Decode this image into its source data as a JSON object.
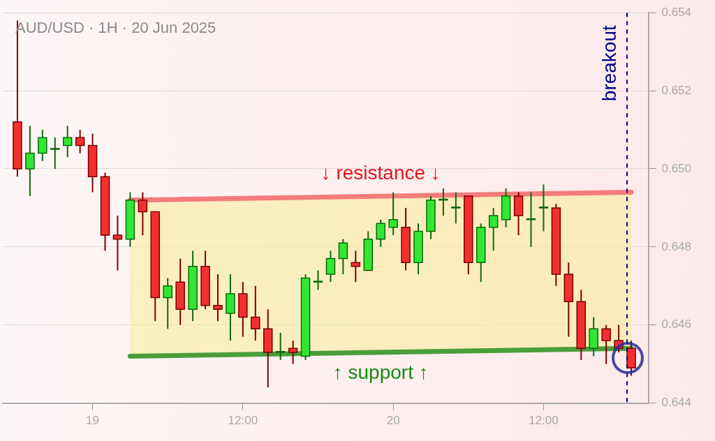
{
  "chart_data": {
    "type": "candlestick",
    "title": "AUD/USD · 1H · 20 Jun 2025",
    "x": [
      "2025-06-18T18:00",
      "2025-06-18T19:00",
      "2025-06-18T20:00",
      "2025-06-18T21:00",
      "2025-06-18T22:00",
      "2025-06-18T23:00",
      "2025-06-19T00:00",
      "2025-06-19T01:00",
      "2025-06-19T02:00",
      "2025-06-19T03:00",
      "2025-06-19T04:00",
      "2025-06-19T05:00",
      "2025-06-19T06:00",
      "2025-06-19T07:00",
      "2025-06-19T08:00",
      "2025-06-19T09:00",
      "2025-06-19T10:00",
      "2025-06-19T11:00",
      "2025-06-19T12:00",
      "2025-06-19T13:00",
      "2025-06-19T14:00",
      "2025-06-19T15:00",
      "2025-06-19T16:00",
      "2025-06-19T17:00",
      "2025-06-19T18:00",
      "2025-06-19T19:00",
      "2025-06-19T20:00",
      "2025-06-19T21:00",
      "2025-06-19T22:00",
      "2025-06-19T23:00",
      "2025-06-20T00:00",
      "2025-06-20T01:00",
      "2025-06-20T02:00",
      "2025-06-20T03:00",
      "2025-06-20T04:00",
      "2025-06-20T05:00",
      "2025-06-20T06:00",
      "2025-06-20T07:00",
      "2025-06-20T08:00",
      "2025-06-20T09:00",
      "2025-06-20T10:00",
      "2025-06-20T11:00",
      "2025-06-20T12:00",
      "2025-06-20T13:00",
      "2025-06-20T14:00",
      "2025-06-20T15:00",
      "2025-06-20T16:00",
      "2025-06-20T17:00",
      "2025-06-20T18:00",
      "2025-06-20T19:00"
    ],
    "ohlc": [
      [
        0.6512,
        0.6538,
        0.6498,
        0.65
      ],
      [
        0.65,
        0.6511,
        0.6493,
        0.6504
      ],
      [
        0.6504,
        0.651,
        0.6502,
        0.6508
      ],
      [
        0.6505,
        0.6508,
        0.65,
        0.65052
      ],
      [
        0.6506,
        0.6511,
        0.6503,
        0.6508
      ],
      [
        0.6508,
        0.651,
        0.6504,
        0.6506
      ],
      [
        0.6506,
        0.6509,
        0.6494,
        0.6498
      ],
      [
        0.6498,
        0.6499,
        0.6479,
        0.6483
      ],
      [
        0.6483,
        0.6488,
        0.6474,
        0.6482
      ],
      [
        0.6482,
        0.6494,
        0.648,
        0.6492
      ],
      [
        0.6492,
        0.6494,
        0.6483,
        0.6489
      ],
      [
        0.6489,
        0.6489,
        0.6461,
        0.6467
      ],
      [
        0.6467,
        0.6472,
        0.6459,
        0.647
      ],
      [
        0.6471,
        0.6477,
        0.646,
        0.6464
      ],
      [
        0.6464,
        0.6479,
        0.6461,
        0.6475
      ],
      [
        0.6475,
        0.6479,
        0.6464,
        0.6465
      ],
      [
        0.6465,
        0.6473,
        0.6461,
        0.6464
      ],
      [
        0.6463,
        0.6473,
        0.6456,
        0.6468
      ],
      [
        0.6468,
        0.6471,
        0.6457,
        0.6462
      ],
      [
        0.6462,
        0.647,
        0.6456,
        0.6459
      ],
      [
        0.6459,
        0.6464,
        0.6444,
        0.6453
      ],
      [
        0.6453,
        0.6458,
        0.6451,
        0.64532
      ],
      [
        0.6454,
        0.6456,
        0.645,
        0.6453
      ],
      [
        0.6452,
        0.6473,
        0.6451,
        0.6472
      ],
      [
        0.6471,
        0.6474,
        0.6469,
        0.64712
      ],
      [
        0.6473,
        0.6479,
        0.6471,
        0.6477
      ],
      [
        0.6477,
        0.6482,
        0.6473,
        0.6481
      ],
      [
        0.6476,
        0.6479,
        0.6471,
        0.6475
      ],
      [
        0.6474,
        0.6484,
        0.6474,
        0.6482
      ],
      [
        0.6482,
        0.6487,
        0.648,
        0.6486
      ],
      [
        0.6485,
        0.6494,
        0.6483,
        0.6487
      ],
      [
        0.6485,
        0.649,
        0.6474,
        0.6476
      ],
      [
        0.6476,
        0.6486,
        0.6473,
        0.6484
      ],
      [
        0.6484,
        0.6493,
        0.6482,
        0.6492
      ],
      [
        0.6492,
        0.6495,
        0.6488,
        0.64922
      ],
      [
        0.649,
        0.6494,
        0.6486,
        0.64902
      ],
      [
        0.6493,
        0.6493,
        0.6473,
        0.6476
      ],
      [
        0.6476,
        0.6486,
        0.6471,
        0.6485
      ],
      [
        0.6485,
        0.649,
        0.6479,
        0.6488
      ],
      [
        0.6487,
        0.6495,
        0.6485,
        0.6493
      ],
      [
        0.6493,
        0.6494,
        0.6483,
        0.6488
      ],
      [
        0.6487,
        0.6494,
        0.648,
        0.64872
      ],
      [
        0.649,
        0.6496,
        0.6484,
        0.64902
      ],
      [
        0.649,
        0.6491,
        0.647,
        0.6473
      ],
      [
        0.6473,
        0.6476,
        0.6457,
        0.6466
      ],
      [
        0.6466,
        0.6469,
        0.6451,
        0.6454
      ],
      [
        0.6454,
        0.6462,
        0.6452,
        0.6459
      ],
      [
        0.6459,
        0.646,
        0.645,
        0.6456
      ],
      [
        0.6456,
        0.646,
        0.6453,
        0.6454
      ],
      [
        0.6454,
        0.6456,
        0.6447,
        0.6449
      ]
    ],
    "series": [
      {
        "type": "line",
        "name": "↓ resistance ↓",
        "color": "#f47c7c",
        "x": [
          "2025-06-19T03:00",
          "2025-06-20T19:00"
        ],
        "values": [
          0.6492,
          0.6494
        ]
      },
      {
        "type": "line",
        "name": "↑ support ↑",
        "color": "#4a9e3a",
        "x": [
          "2025-06-19T03:00",
          "2025-06-20T19:00"
        ],
        "values": [
          0.6452,
          0.6454
        ],
        "lower": [
          0.6452,
          0.6454
        ],
        "upper": [
          0.6492,
          0.6494
        ]
      }
    ],
    "xlim": [
      "2025-06-18T16:50",
      "2025-06-20T20:25"
    ],
    "xticks": [
      {
        "value": "2025-06-19",
        "label": "19"
      },
      {
        "value": "2025-06-19T12:00",
        "label": "12:00"
      },
      {
        "value": "2025-06-20",
        "label": "20"
      },
      {
        "value": "2025-06-20T12:00",
        "label": "12:00"
      }
    ],
    "ylim": [
      0.644,
      0.654
    ],
    "yticks": [
      {
        "value": 0.644,
        "label": "0.644"
      },
      {
        "value": 0.646,
        "label": "0.646"
      },
      {
        "value": 0.648,
        "label": "0.648"
      },
      {
        "value": 0.65,
        "label": "0.650"
      },
      {
        "value": 0.652,
        "label": "0.652"
      },
      {
        "value": 0.654,
        "label": "0.654"
      }
    ],
    "ref_lines": [
      {
        "axis": "x",
        "value": "2025-06-20T18:40",
        "label": "breakout",
        "color": "#00008b",
        "line_style": "dashed"
      }
    ],
    "grid": "y",
    "legend": false
  }
}
